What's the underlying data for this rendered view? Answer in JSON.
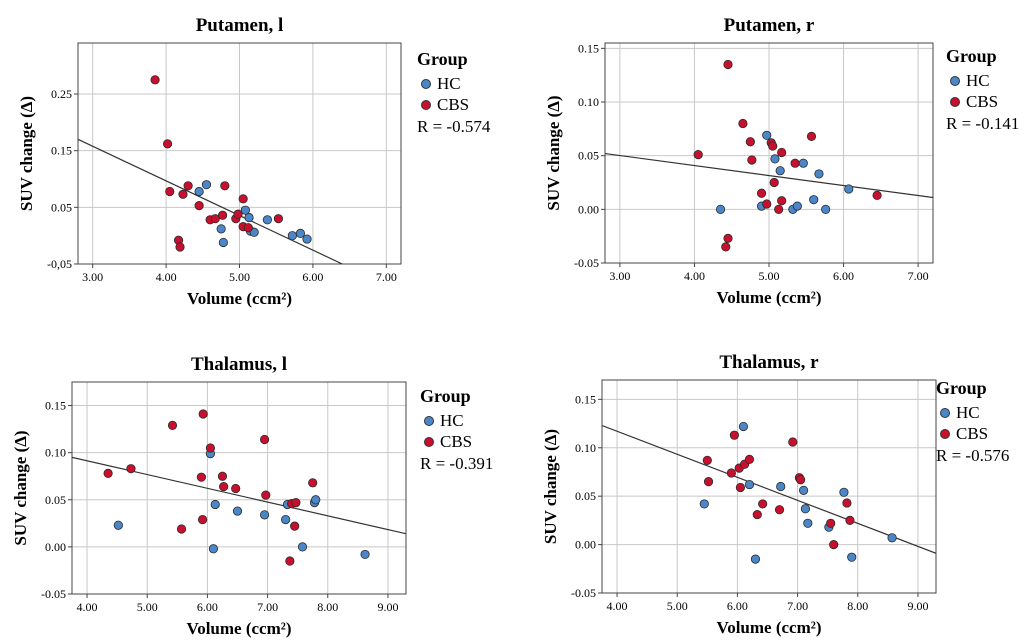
{
  "legend": {
    "title": "Group",
    "groups": [
      {
        "name": "HC",
        "color": "#4a86c8"
      },
      {
        "name": "CBS",
        "color": "#c8102e"
      }
    ]
  },
  "fit_line_color": "#333333",
  "chart_data": [
    {
      "type": "scatter",
      "title": "Putamen, l",
      "xlabel": "Volume (ccm²)",
      "ylabel": "SUV change (Δ)",
      "xlim": [
        2.8,
        7.2
      ],
      "ylim": [
        -0.05,
        0.34
      ],
      "xticks": [
        "3.00",
        "4.00",
        "5.00",
        "6.00",
        "7.00"
      ],
      "xtick_values": [
        3,
        4,
        5,
        6,
        7
      ],
      "yticks": [
        "-0,05",
        "0.05",
        "0.15",
        "0.25"
      ],
      "ytick_values": [
        -0.05,
        0.05,
        0.15,
        0.25
      ],
      "r_label": "R = -0.574",
      "fit_line": [
        [
          2.8,
          0.17
        ],
        [
          6.4,
          -0.05
        ]
      ],
      "series": [
        {
          "name": "HC",
          "points": [
            [
              4.45,
              0.078
            ],
            [
              4.55,
              0.09
            ],
            [
              4.75,
              0.012
            ],
            [
              4.78,
              -0.012
            ],
            [
              5.08,
              0.045
            ],
            [
              5.13,
              0.032
            ],
            [
              5.15,
              0.008
            ],
            [
              5.2,
              0.006
            ],
            [
              5.38,
              0.028
            ],
            [
              5.72,
              0.0
            ],
            [
              5.83,
              0.004
            ],
            [
              5.92,
              -0.006
            ]
          ]
        },
        {
          "name": "CBS",
          "points": [
            [
              3.85,
              0.275
            ],
            [
              4.02,
              0.162
            ],
            [
              4.05,
              0.078
            ],
            [
              4.17,
              -0.008
            ],
            [
              4.19,
              -0.02
            ],
            [
              4.23,
              0.073
            ],
            [
              4.3,
              0.088
            ],
            [
              4.45,
              0.053
            ],
            [
              4.6,
              0.028
            ],
            [
              4.67,
              0.03
            ],
            [
              4.77,
              0.036
            ],
            [
              4.8,
              0.088
            ],
            [
              4.95,
              0.03
            ],
            [
              4.98,
              0.038
            ],
            [
              5.05,
              0.016
            ],
            [
              5.05,
              0.065
            ],
            [
              5.12,
              0.014
            ],
            [
              5.53,
              0.03
            ]
          ]
        }
      ]
    },
    {
      "type": "scatter",
      "title": "Putamen, r",
      "xlabel": "Volume (ccm²)",
      "ylabel": "SUV change (Δ)",
      "xlim": [
        2.8,
        7.2
      ],
      "ylim": [
        -0.05,
        0.155
      ],
      "xticks": [
        "3.00",
        "4.00",
        "5.00",
        "6.00",
        "7.00"
      ],
      "xtick_values": [
        3,
        4,
        5,
        6,
        7
      ],
      "yticks": [
        "-0.05",
        "0.00",
        "0.05",
        "0.10",
        "0.15"
      ],
      "ytick_values": [
        -0.05,
        0.0,
        0.05,
        0.1,
        0.15
      ],
      "r_label": "R = -0.141",
      "fit_line": [
        [
          2.8,
          0.052
        ],
        [
          7.2,
          0.011
        ]
      ],
      "series": [
        {
          "name": "HC",
          "points": [
            [
              4.35,
              0.0
            ],
            [
              4.9,
              0.003
            ],
            [
              4.97,
              0.069
            ],
            [
              5.08,
              0.047
            ],
            [
              5.15,
              0.036
            ],
            [
              5.32,
              0.0
            ],
            [
              5.38,
              0.003
            ],
            [
              5.46,
              0.043
            ],
            [
              5.6,
              0.009
            ],
            [
              5.67,
              0.033
            ],
            [
              5.76,
              0.0
            ],
            [
              6.07,
              0.019
            ]
          ]
        },
        {
          "name": "CBS",
          "points": [
            [
              4.05,
              0.051
            ],
            [
              4.42,
              -0.035
            ],
            [
              4.45,
              -0.027
            ],
            [
              4.45,
              0.135
            ],
            [
              4.65,
              0.08
            ],
            [
              4.75,
              0.063
            ],
            [
              4.77,
              0.046
            ],
            [
              4.9,
              0.015
            ],
            [
              4.97,
              0.005
            ],
            [
              5.03,
              0.062
            ],
            [
              5.05,
              0.059
            ],
            [
              5.07,
              0.025
            ],
            [
              5.13,
              0.0
            ],
            [
              5.17,
              0.053
            ],
            [
              5.17,
              0.008
            ],
            [
              5.35,
              0.043
            ],
            [
              5.57,
              0.068
            ],
            [
              6.45,
              0.013
            ]
          ]
        }
      ]
    },
    {
      "type": "scatter",
      "title": "Thalamus, l",
      "xlabel": "Volume (ccm²)",
      "ylabel": "SUV change (Δ)",
      "xlim": [
        3.75,
        9.3
      ],
      "ylim": [
        -0.05,
        0.175
      ],
      "xticks": [
        "4.00",
        "5.00",
        "6.00",
        "7.00",
        "8.00",
        "9.00"
      ],
      "xtick_values": [
        4,
        5,
        6,
        7,
        8,
        9
      ],
      "yticks": [
        "-0.05",
        "0.00",
        "0.05",
        "0.10",
        "0.15"
      ],
      "ytick_values": [
        -0.05,
        0.0,
        0.05,
        0.1,
        0.15
      ],
      "r_label": "R = -0.391",
      "fit_line": [
        [
          3.75,
          0.095
        ],
        [
          9.3,
          0.014
        ]
      ],
      "series": [
        {
          "name": "HC",
          "points": [
            [
              4.52,
              0.023
            ],
            [
              6.05,
              0.099
            ],
            [
              6.1,
              -0.002
            ],
            [
              6.13,
              0.045
            ],
            [
              6.5,
              0.038
            ],
            [
              6.95,
              0.034
            ],
            [
              7.3,
              0.029
            ],
            [
              7.33,
              0.045
            ],
            [
              7.58,
              0.0
            ],
            [
              7.78,
              0.047
            ],
            [
              7.8,
              0.05
            ],
            [
              8.62,
              -0.008
            ]
          ]
        },
        {
          "name": "CBS",
          "points": [
            [
              4.35,
              0.078
            ],
            [
              4.73,
              0.083
            ],
            [
              5.42,
              0.129
            ],
            [
              5.57,
              0.019
            ],
            [
              5.9,
              0.074
            ],
            [
              5.92,
              0.029
            ],
            [
              5.93,
              0.141
            ],
            [
              6.05,
              0.105
            ],
            [
              6.25,
              0.075
            ],
            [
              6.27,
              0.064
            ],
            [
              6.47,
              0.062
            ],
            [
              6.95,
              0.114
            ],
            [
              6.97,
              0.055
            ],
            [
              7.37,
              -0.015
            ],
            [
              7.4,
              0.046
            ],
            [
              7.45,
              0.022
            ],
            [
              7.47,
              0.047
            ],
            [
              7.75,
              0.068
            ]
          ]
        }
      ]
    },
    {
      "type": "scatter",
      "title": "Thalamus, r",
      "xlabel": "Volume (ccm²)",
      "ylabel": "SUV change (Δ)",
      "xlim": [
        3.75,
        9.3
      ],
      "ylim": [
        -0.05,
        0.17
      ],
      "xticks": [
        "4.00",
        "5.00",
        "6.00",
        "7.00",
        "8.00",
        "9.00"
      ],
      "xtick_values": [
        4,
        5,
        6,
        7,
        8,
        9
      ],
      "yticks": [
        "-0.05",
        "0.00",
        "0.05",
        "0.10",
        "0.15"
      ],
      "ytick_values": [
        -0.05,
        0.0,
        0.05,
        0.1,
        0.15
      ],
      "r_label": "R = -0.576",
      "fit_line": [
        [
          3.75,
          0.123
        ],
        [
          9.3,
          -0.009
        ]
      ],
      "series": [
        {
          "name": "HC",
          "points": [
            [
              5.45,
              0.042
            ],
            [
              6.1,
              0.122
            ],
            [
              6.2,
              0.062
            ],
            [
              6.3,
              -0.015
            ],
            [
              6.72,
              0.06
            ],
            [
              7.1,
              0.056
            ],
            [
              7.13,
              0.037
            ],
            [
              7.17,
              0.022
            ],
            [
              7.52,
              0.018
            ],
            [
              7.77,
              0.054
            ],
            [
              7.9,
              -0.013
            ],
            [
              8.57,
              0.007
            ]
          ]
        },
        {
          "name": "CBS",
          "points": [
            [
              5.5,
              0.087
            ],
            [
              5.52,
              0.065
            ],
            [
              5.9,
              0.074
            ],
            [
              5.95,
              0.113
            ],
            [
              6.03,
              0.079
            ],
            [
              6.05,
              0.059
            ],
            [
              6.12,
              0.083
            ],
            [
              6.2,
              0.088
            ],
            [
              6.33,
              0.031
            ],
            [
              6.42,
              0.042
            ],
            [
              6.7,
              0.036
            ],
            [
              6.92,
              0.106
            ],
            [
              7.03,
              0.069
            ],
            [
              7.05,
              0.067
            ],
            [
              7.55,
              0.022
            ],
            [
              7.6,
              0.0
            ],
            [
              7.82,
              0.043
            ],
            [
              7.87,
              0.025
            ]
          ]
        }
      ]
    }
  ]
}
